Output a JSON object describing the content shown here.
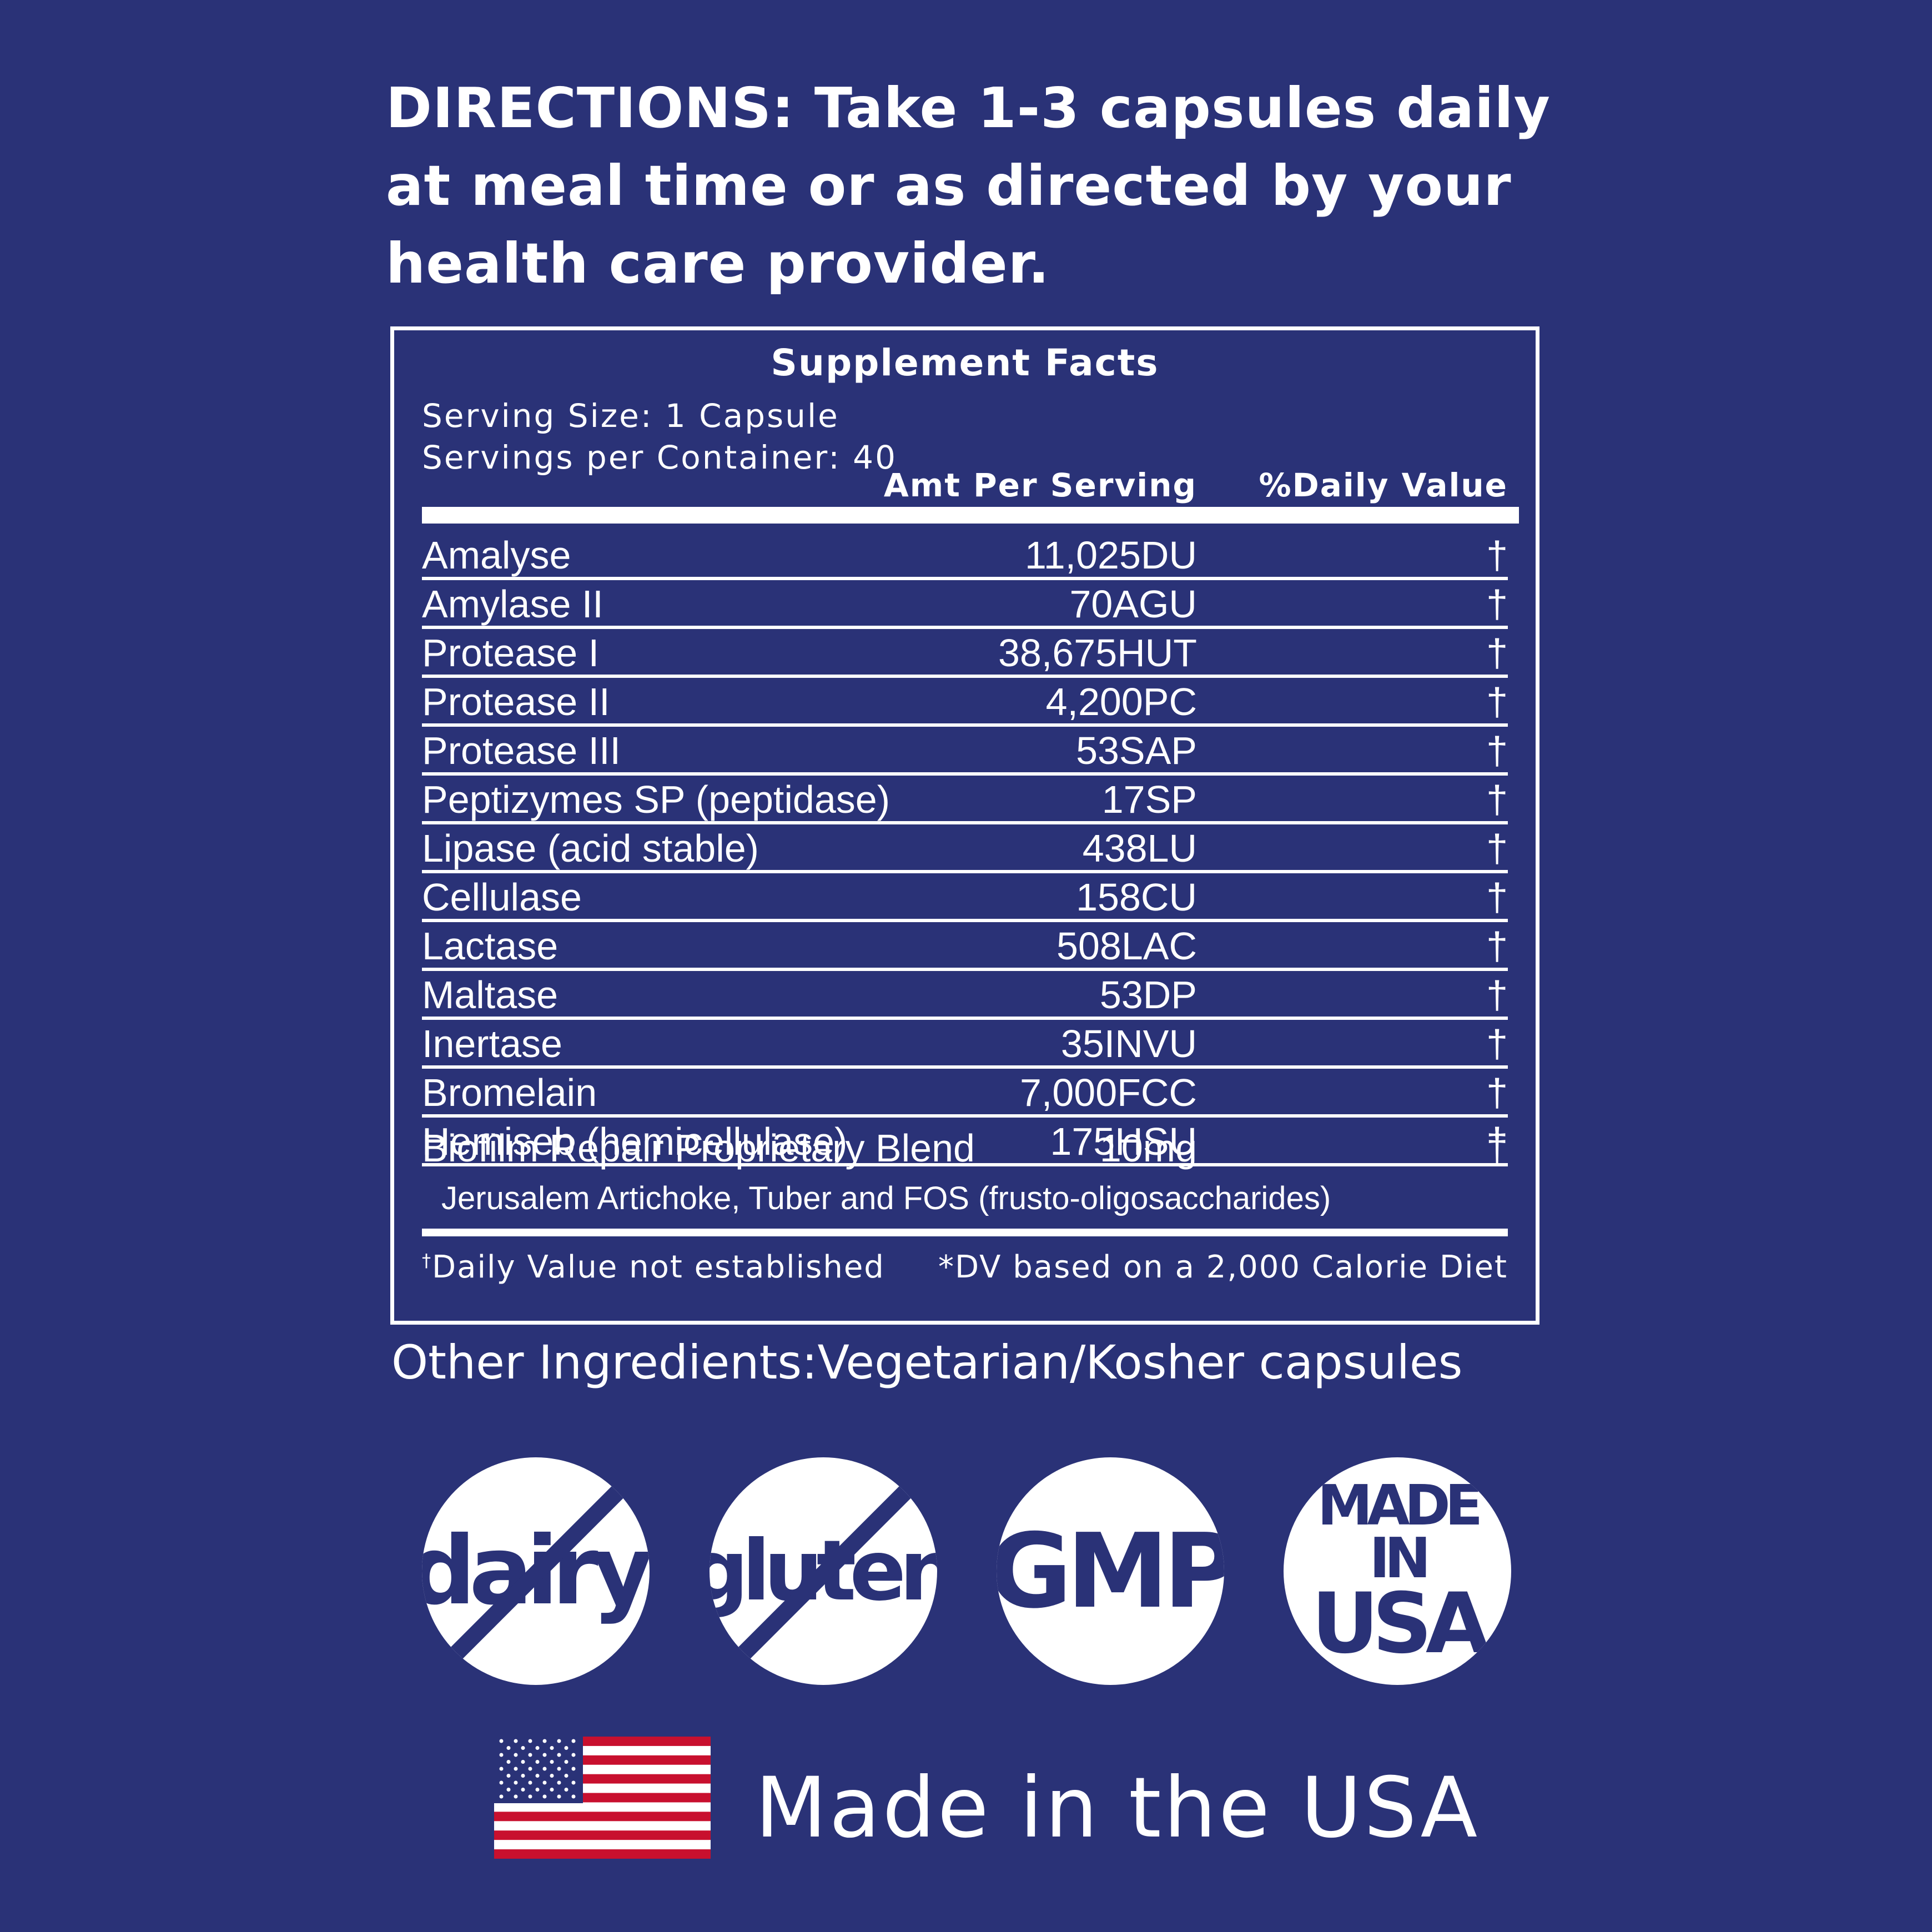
{
  "directions": {
    "line1": "DIRECTIONS: Take 1-3 capsules daily",
    "line2": "at meal time or as directed by your",
    "line3": "health care provider."
  },
  "facts": {
    "title": "Supplement Facts",
    "serving_size": "Serving Size: 1 Capsule",
    "servings_per_container": "Servings per Container: 40",
    "col_amount": "Amt Per Serving",
    "col_daily_value": "%Daily Value",
    "rows": [
      {
        "name": "Amalyse",
        "amount": "11,025DU",
        "dv": "†"
      },
      {
        "name": "Amylase II",
        "amount": "70AGU",
        "dv": "†"
      },
      {
        "name": "Protease I",
        "amount": "38,675HUT",
        "dv": "†"
      },
      {
        "name": "Protease II",
        "amount": "4,200PC",
        "dv": "†"
      },
      {
        "name": "Protease III",
        "amount": "53SAP",
        "dv": "†"
      },
      {
        "name": "Peptizymes SP (peptidase)",
        "amount": "17SP",
        "dv": "†"
      },
      {
        "name": "Lipase (acid stable)",
        "amount": "438LU",
        "dv": "†"
      },
      {
        "name": "Cellulase",
        "amount": "158CU",
        "dv": "†"
      },
      {
        "name": "Lactase",
        "amount": "508LAC",
        "dv": "†"
      },
      {
        "name": "Maltase",
        "amount": "53DP",
        "dv": "†"
      },
      {
        "name": "Inertase",
        "amount": "35INVU",
        "dv": "†"
      },
      {
        "name": "Bromelain",
        "amount": "7,000FCC",
        "dv": "†"
      },
      {
        "name": "Hemiseb (hemicellulase)",
        "amount": "175HSU",
        "dv": "†"
      }
    ],
    "blend": {
      "name": "Biofilm Repair Proprietary Blend",
      "amount": "10mg",
      "dv": "†",
      "ingredients": "Jerusalem Artichoke, Tuber and FOS (frusto-oligosaccharides)"
    },
    "footnote_mark": "†",
    "footnote_left": "Daily Value not established",
    "footnote_right": "*DV based on a 2,000 Calorie Diet"
  },
  "other_ingredients": "Other Ingredients:Vegetarian/Kosher capsules",
  "badges": {
    "dairy": "dairy",
    "gluten": "gluten",
    "gmp": "GMP",
    "made_in": "MADE IN",
    "usa": "USA"
  },
  "made_in_usa": "Made in the USA",
  "colors": {
    "background": "#2a3277",
    "foreground": "#ffffff",
    "flag_red": "#c8102e",
    "flag_blue": "#2a3277"
  }
}
